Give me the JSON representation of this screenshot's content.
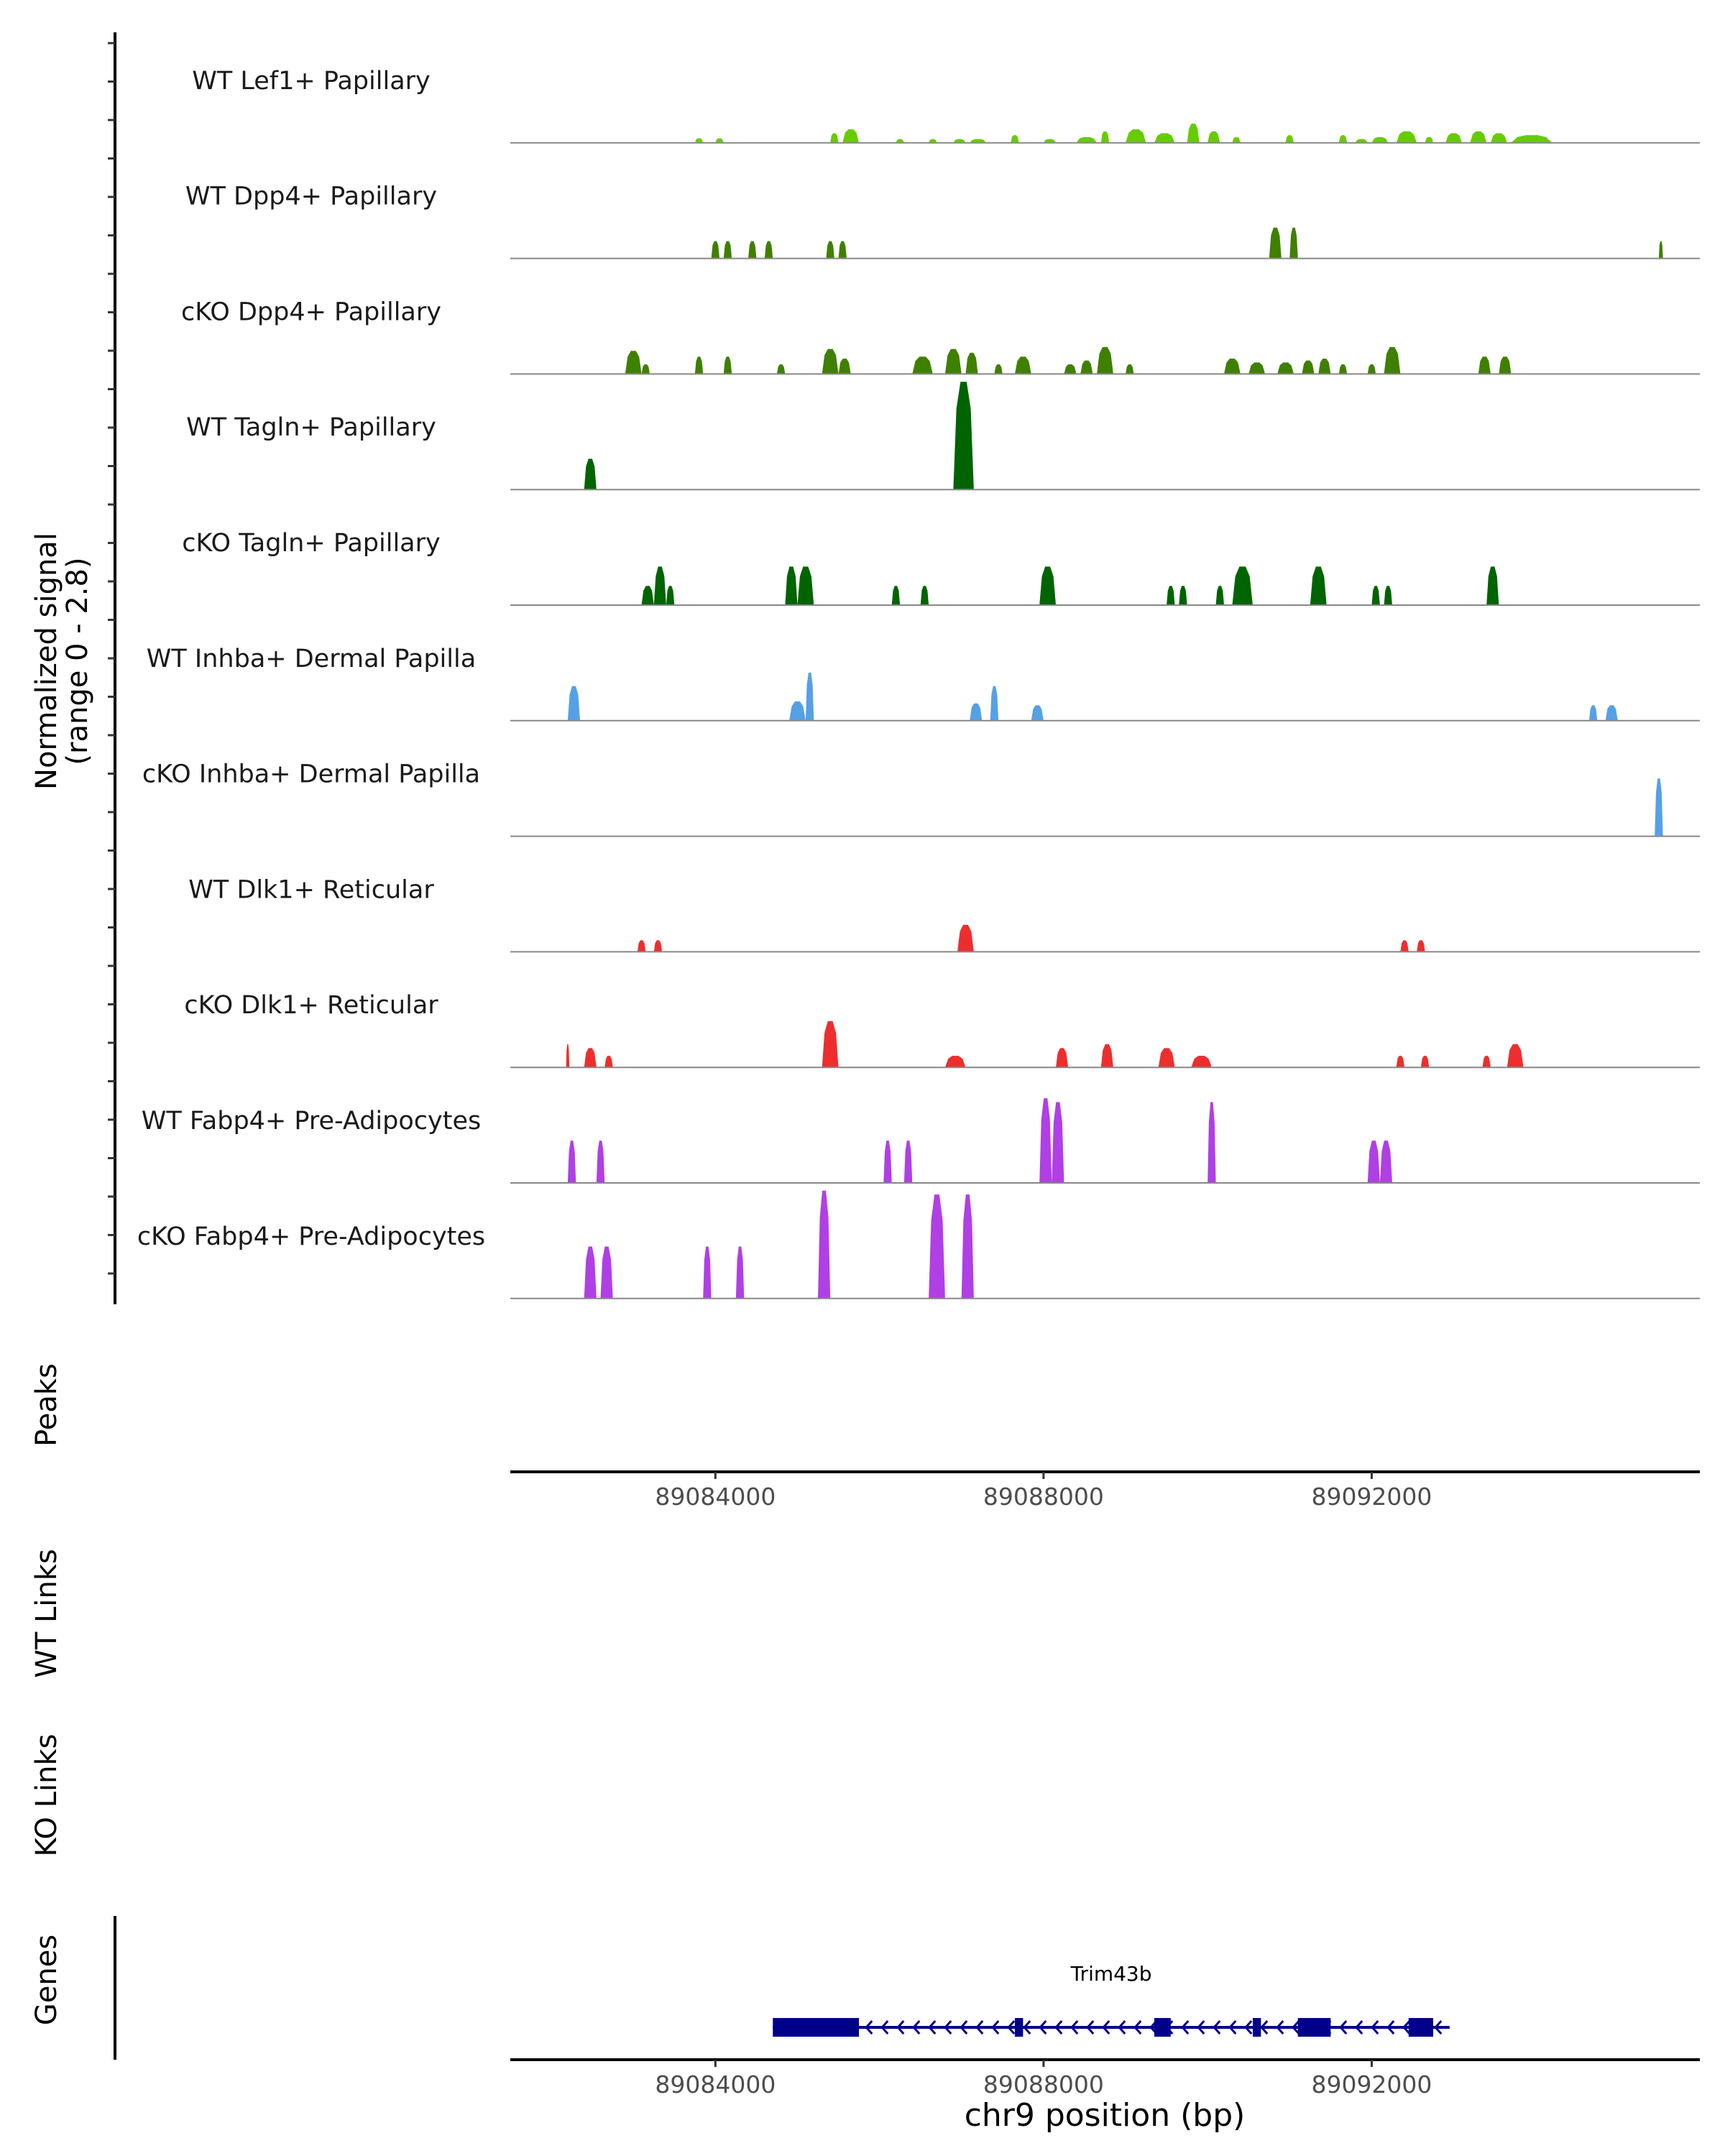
{
  "chart_data": {
    "type": "area",
    "title": "",
    "region": {
      "chrom": "chr9",
      "start": 89081500,
      "end": 89096000
    },
    "y_axis_label_line1": "Normalized signal",
    "y_axis_label_line2": "(range 0 - 2.8)",
    "ylim": [
      0,
      2.8
    ],
    "xlabel": "chr9 position (bp)",
    "x_ticks": [
      89084000,
      89088000,
      89092000
    ],
    "x_tick_labels": [
      "89084000",
      "89088000",
      "89092000"
    ],
    "tracks": [
      {
        "name": "WT Lef1+ Papillary",
        "color": "#66CC00",
        "peaks": [
          [
            89083750,
            89083850,
            0.12
          ],
          [
            89084000,
            89084100,
            0.12
          ],
          [
            89085400,
            89085500,
            0.25
          ],
          [
            89085550,
            89085750,
            0.35
          ],
          [
            89086200,
            89086300,
            0.1
          ],
          [
            89086600,
            89086700,
            0.1
          ],
          [
            89086900,
            89087050,
            0.1
          ],
          [
            89087100,
            89087300,
            0.1
          ],
          [
            89087600,
            89087700,
            0.2
          ],
          [
            89088000,
            89088150,
            0.1
          ],
          [
            89088400,
            89088650,
            0.15
          ],
          [
            89088700,
            89088800,
            0.3
          ],
          [
            89089000,
            89089250,
            0.35
          ],
          [
            89089350,
            89089600,
            0.25
          ],
          [
            89089750,
            89089900,
            0.5
          ],
          [
            89090000,
            89090150,
            0.3
          ],
          [
            89090300,
            89090400,
            0.15
          ],
          [
            89090950,
            89091050,
            0.2
          ],
          [
            89091600,
            89091700,
            0.2
          ],
          [
            89091800,
            89091950,
            0.1
          ],
          [
            89092000,
            89092200,
            0.15
          ],
          [
            89092300,
            89092550,
            0.3
          ],
          [
            89092650,
            89092750,
            0.15
          ],
          [
            89092900,
            89093100,
            0.25
          ],
          [
            89093200,
            89093400,
            0.3
          ],
          [
            89093450,
            89093650,
            0.25
          ],
          [
            89093700,
            89094200,
            0.2
          ]
        ]
      },
      {
        "name": "WT Dpp4+ Papillary",
        "color": "#408000",
        "peaks": [
          [
            89083950,
            89084050,
            0.45
          ],
          [
            89084100,
            89084200,
            0.45
          ],
          [
            89084400,
            89084500,
            0.45
          ],
          [
            89084600,
            89084700,
            0.45
          ],
          [
            89085350,
            89085450,
            0.45
          ],
          [
            89085500,
            89085600,
            0.45
          ],
          [
            89090750,
            89090900,
            0.8
          ],
          [
            89091000,
            89091100,
            0.8
          ],
          [
            89095500,
            89095550,
            0.45
          ]
        ]
      },
      {
        "name": "cKO Dpp4+ Papillary",
        "color": "#3F8000",
        "peaks": [
          [
            89082900,
            89083100,
            0.6
          ],
          [
            89083100,
            89083200,
            0.25
          ],
          [
            89083750,
            89083850,
            0.45
          ],
          [
            89084100,
            89084200,
            0.45
          ],
          [
            89084750,
            89084850,
            0.25
          ],
          [
            89085300,
            89085500,
            0.65
          ],
          [
            89085500,
            89085650,
            0.4
          ],
          [
            89086400,
            89086650,
            0.45
          ],
          [
            89086800,
            89087000,
            0.65
          ],
          [
            89087050,
            89087200,
            0.55
          ],
          [
            89087400,
            89087500,
            0.25
          ],
          [
            89087650,
            89087850,
            0.45
          ],
          [
            89088250,
            89088400,
            0.25
          ],
          [
            89088450,
            89088600,
            0.35
          ],
          [
            89088650,
            89088850,
            0.7
          ],
          [
            89089000,
            89089100,
            0.25
          ],
          [
            89090200,
            89090400,
            0.4
          ],
          [
            89090500,
            89090700,
            0.3
          ],
          [
            89090850,
            89091050,
            0.3
          ],
          [
            89091150,
            89091300,
            0.35
          ],
          [
            89091350,
            89091500,
            0.4
          ],
          [
            89091600,
            89091700,
            0.25
          ],
          [
            89091950,
            89092050,
            0.25
          ],
          [
            89092150,
            89092350,
            0.7
          ],
          [
            89093300,
            89093450,
            0.45
          ],
          [
            89093550,
            89093700,
            0.45
          ]
        ]
      },
      {
        "name": "WT Tagln+ Papillary",
        "color": "#006400",
        "peaks": [
          [
            89082400,
            89082550,
            0.8
          ],
          [
            89086900,
            89087150,
            2.8
          ]
        ]
      },
      {
        "name": "cKO Tagln+ Papillary",
        "color": "#006400",
        "peaks": [
          [
            89083100,
            89083250,
            0.5
          ],
          [
            89083250,
            89083400,
            1.0
          ],
          [
            89083400,
            89083500,
            0.5
          ],
          [
            89084850,
            89085000,
            1.0
          ],
          [
            89085000,
            89085200,
            1.0
          ],
          [
            89086150,
            89086250,
            0.5
          ],
          [
            89086500,
            89086600,
            0.5
          ],
          [
            89087950,
            89088150,
            1.0
          ],
          [
            89089500,
            89089600,
            0.5
          ],
          [
            89089650,
            89089750,
            0.5
          ],
          [
            89090100,
            89090200,
            0.5
          ],
          [
            89090300,
            89090550,
            1.0
          ],
          [
            89091250,
            89091450,
            1.0
          ],
          [
            89092000,
            89092100,
            0.5
          ],
          [
            89092150,
            89092250,
            0.5
          ],
          [
            89093400,
            89093550,
            1.0
          ]
        ]
      },
      {
        "name": "WT Inhba+ Dermal Papilla",
        "color": "#56A0E6",
        "peaks": [
          [
            89082200,
            89082350,
            0.9
          ],
          [
            89084900,
            89085100,
            0.5
          ],
          [
            89085100,
            89085200,
            1.25
          ],
          [
            89087100,
            89087250,
            0.45
          ],
          [
            89087350,
            89087450,
            0.9
          ],
          [
            89087850,
            89088000,
            0.4
          ],
          [
            89094650,
            89094750,
            0.4
          ],
          [
            89094850,
            89095000,
            0.4
          ]
        ]
      },
      {
        "name": "cKO Inhba+ Dermal Papilla",
        "color": "#56A0E6",
        "peaks": [
          [
            89095450,
            89095550,
            1.5
          ]
        ]
      },
      {
        "name": "WT Dlk1+ Reticular",
        "color": "#EE2E2E",
        "peaks": [
          [
            89083050,
            89083150,
            0.3
          ],
          [
            89083250,
            89083350,
            0.3
          ],
          [
            89086950,
            89087150,
            0.7
          ],
          [
            89092350,
            89092450,
            0.3
          ],
          [
            89092550,
            89092650,
            0.3
          ]
        ]
      },
      {
        "name": "cKO Dlk1+ Reticular",
        "color": "#EE2E2E",
        "peaks": [
          [
            89082180,
            89082220,
            0.6
          ],
          [
            89082400,
            89082550,
            0.5
          ],
          [
            89082650,
            89082750,
            0.3
          ],
          [
            89085300,
            89085500,
            1.2
          ],
          [
            89086800,
            89087050,
            0.3
          ],
          [
            89088150,
            89088300,
            0.5
          ],
          [
            89088700,
            89088850,
            0.6
          ],
          [
            89089400,
            89089600,
            0.5
          ],
          [
            89089800,
            89090050,
            0.3
          ],
          [
            89092300,
            89092400,
            0.3
          ],
          [
            89092600,
            89092700,
            0.3
          ],
          [
            89093350,
            89093450,
            0.3
          ],
          [
            89093650,
            89093850,
            0.6
          ]
        ]
      },
      {
        "name": "WT Fabp4+ Pre-Adipocytes",
        "color": "#B03FE6",
        "peaks": [
          [
            89082200,
            89082300,
            1.1
          ],
          [
            89082550,
            89082650,
            1.1
          ],
          [
            89086050,
            89086150,
            1.1
          ],
          [
            89086300,
            89086400,
            1.1
          ],
          [
            89087950,
            89088100,
            2.2
          ],
          [
            89088100,
            89088250,
            2.1
          ],
          [
            89090000,
            89090100,
            2.1
          ],
          [
            89091950,
            89092100,
            1.1
          ],
          [
            89092100,
            89092250,
            1.1
          ]
        ]
      },
      {
        "name": "cKO Fabp4+ Pre-Adipocytes",
        "color": "#B03FE6",
        "peaks": [
          [
            89082400,
            89082550,
            1.35
          ],
          [
            89082600,
            89082750,
            1.35
          ],
          [
            89083850,
            89083950,
            1.35
          ],
          [
            89084250,
            89084350,
            1.35
          ],
          [
            89085250,
            89085400,
            2.8
          ],
          [
            89086600,
            89086800,
            2.7
          ],
          [
            89087000,
            89087150,
            2.7
          ]
        ]
      }
    ],
    "other_track_labels": [
      "Peaks",
      "WT Links",
      "KO Links",
      "Genes"
    ],
    "gene": {
      "name": "Trim43b",
      "start": 89084700,
      "end": 89092950,
      "strand": "-",
      "color": "#00008B",
      "exons": [
        [
          89084700,
          89085750
        ],
        [
          89087650,
          89087750
        ],
        [
          89089350,
          89089550
        ],
        [
          89090550,
          89090650
        ],
        [
          89091100,
          89091500
        ],
        [
          89092450,
          89092750
        ]
      ]
    }
  }
}
